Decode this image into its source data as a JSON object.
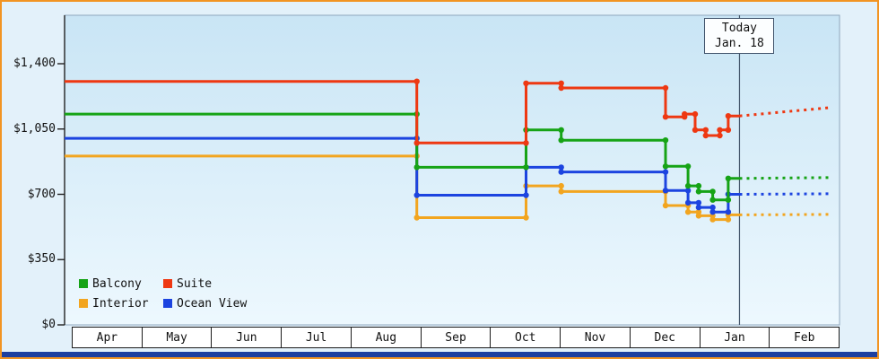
{
  "chart_data": {
    "type": "line",
    "x_months": [
      "Apr",
      "May",
      "Jun",
      "Jul",
      "Aug",
      "Sep",
      "Oct",
      "Nov",
      "Dec",
      "Jan",
      "Feb"
    ],
    "x_range": [
      0,
      11
    ],
    "y_ticks": [
      0,
      350,
      700,
      1050,
      1400
    ],
    "y_tick_labels": [
      "$0",
      "$350",
      "$700",
      "$1,050",
      "$1,400"
    ],
    "grid": "off",
    "legend_position": "bottom-left",
    "today": {
      "x": 9.58,
      "line1": "Today",
      "line2": "Jan. 18"
    },
    "series": [
      {
        "name": "Balcony",
        "color": "#16a316",
        "points": [
          [
            0,
            1130
          ],
          [
            5,
            1130
          ],
          [
            5,
            845
          ],
          [
            6.55,
            845
          ],
          [
            6.55,
            1045
          ],
          [
            7.05,
            1045
          ],
          [
            7.05,
            990
          ],
          [
            8.53,
            990
          ],
          [
            8.53,
            850
          ],
          [
            8.85,
            850
          ],
          [
            8.85,
            745
          ],
          [
            9.0,
            745
          ],
          [
            9.0,
            715
          ],
          [
            9.2,
            715
          ],
          [
            9.2,
            670
          ],
          [
            9.42,
            670
          ],
          [
            9.42,
            785
          ],
          [
            9.58,
            785
          ]
        ],
        "projection": [
          10.88,
          790
        ]
      },
      {
        "name": "Suite",
        "color": "#ee3812",
        "points": [
          [
            0,
            1305
          ],
          [
            5,
            1305
          ],
          [
            5,
            975
          ],
          [
            6.55,
            975
          ],
          [
            6.55,
            1295
          ],
          [
            7.05,
            1295
          ],
          [
            7.05,
            1270
          ],
          [
            8.53,
            1270
          ],
          [
            8.53,
            1115
          ],
          [
            8.8,
            1115
          ],
          [
            8.8,
            1130
          ],
          [
            8.95,
            1130
          ],
          [
            8.95,
            1045
          ],
          [
            9.1,
            1045
          ],
          [
            9.1,
            1015
          ],
          [
            9.3,
            1015
          ],
          [
            9.3,
            1045
          ],
          [
            9.42,
            1045
          ],
          [
            9.42,
            1120
          ],
          [
            9.58,
            1120
          ]
        ],
        "projection": [
          10.88,
          1165
        ]
      },
      {
        "name": "Interior",
        "color": "#f2a51f",
        "points": [
          [
            0,
            905
          ],
          [
            5,
            905
          ],
          [
            5,
            575
          ],
          [
            6.55,
            575
          ],
          [
            6.55,
            745
          ],
          [
            7.05,
            745
          ],
          [
            7.05,
            715
          ],
          [
            8.53,
            715
          ],
          [
            8.53,
            640
          ],
          [
            8.85,
            640
          ],
          [
            8.85,
            605
          ],
          [
            9.0,
            605
          ],
          [
            9.0,
            585
          ],
          [
            9.2,
            585
          ],
          [
            9.2,
            565
          ],
          [
            9.42,
            565
          ],
          [
            9.42,
            590
          ],
          [
            9.58,
            590
          ]
        ],
        "projection": [
          10.88,
          592
        ]
      },
      {
        "name": "Ocean View",
        "color": "#1c44e0",
        "points": [
          [
            0,
            1000
          ],
          [
            5,
            1000
          ],
          [
            5,
            695
          ],
          [
            6.55,
            695
          ],
          [
            6.55,
            845
          ],
          [
            7.05,
            845
          ],
          [
            7.05,
            820
          ],
          [
            8.53,
            820
          ],
          [
            8.53,
            720
          ],
          [
            8.85,
            720
          ],
          [
            8.85,
            655
          ],
          [
            9.0,
            655
          ],
          [
            9.0,
            630
          ],
          [
            9.2,
            630
          ],
          [
            9.2,
            605
          ],
          [
            9.42,
            605
          ],
          [
            9.42,
            700
          ],
          [
            9.58,
            700
          ]
        ],
        "projection": [
          10.88,
          703
        ]
      }
    ]
  }
}
